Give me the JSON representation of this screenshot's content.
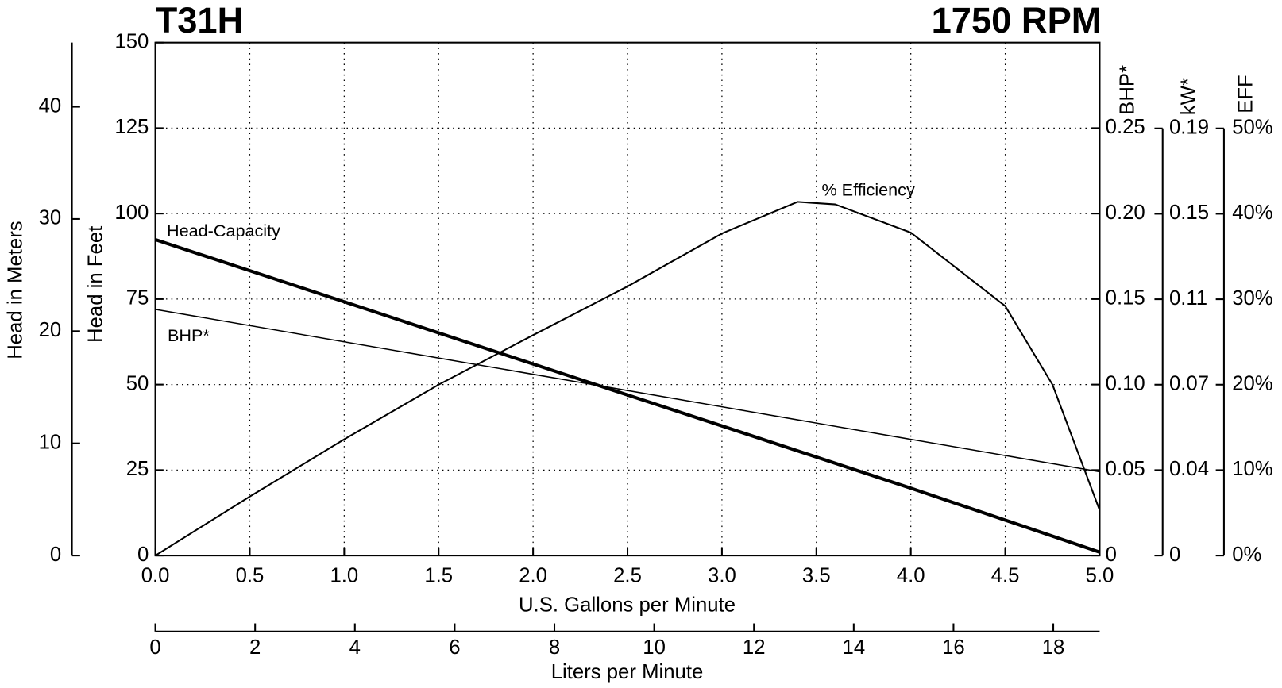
{
  "chart_data": {
    "type": "line",
    "title": "T31H",
    "subtitle": "1750 RPM",
    "xlabel": "U.S. Gallons per Minute",
    "xlim": [
      0,
      5
    ],
    "xticks": [
      {
        "value": 0,
        "label": "0.0"
      },
      {
        "value": 0.5,
        "label": "0.5"
      },
      {
        "value": 1,
        "label": "1.0"
      },
      {
        "value": 1.5,
        "label": "1.5"
      },
      {
        "value": 2,
        "label": "2.0"
      },
      {
        "value": 2.5,
        "label": "2.5"
      },
      {
        "value": 3,
        "label": "3.0"
      },
      {
        "value": 3.5,
        "label": "3.5"
      },
      {
        "value": 4,
        "label": "4.0"
      },
      {
        "value": 4.5,
        "label": "4.5"
      },
      {
        "value": 5,
        "label": "5.0"
      }
    ],
    "x2label": "Liters per Minute",
    "x2lim": [
      0,
      18.93
    ],
    "x2ticks": [
      0,
      2,
      4,
      6,
      8,
      10,
      12,
      14,
      16,
      18
    ],
    "ylabel": "Head in Feet",
    "ylim": [
      0,
      150
    ],
    "yticks": [
      0,
      25,
      50,
      75,
      100,
      125,
      150
    ],
    "ymlabel": "Head in Meters",
    "ymlim": [
      0,
      45.72
    ],
    "ymticks": [
      0,
      10,
      20,
      30,
      40
    ],
    "y2label": "BHP*",
    "y2lim": [
      0,
      0.3
    ],
    "y2ticks": [
      {
        "value": 0,
        "label": "0"
      },
      {
        "value": 0.05,
        "label": "0.05"
      },
      {
        "value": 0.1,
        "label": "0.10"
      },
      {
        "value": 0.15,
        "label": "0.15"
      },
      {
        "value": 0.2,
        "label": "0.20"
      },
      {
        "value": 0.25,
        "label": "0.25"
      }
    ],
    "y3label": "kW*",
    "y3lim": [
      0,
      0.1865
    ],
    "y3ticks": [
      {
        "value": 0,
        "label": "0"
      },
      {
        "value": 0.0373,
        "label": "0.04"
      },
      {
        "value": 0.0746,
        "label": "0.07"
      },
      {
        "value": 0.1119,
        "label": "0.11"
      },
      {
        "value": 0.1492,
        "label": "0.15"
      },
      {
        "value": 0.1865,
        "label": "0.19"
      }
    ],
    "y4label": "EFF",
    "y4lim": [
      0,
      50
    ],
    "y4ticks": [
      {
        "value": 0,
        "label": "0%"
      },
      {
        "value": 10,
        "label": "10%"
      },
      {
        "value": 20,
        "label": "20%"
      },
      {
        "value": 30,
        "label": "30%"
      },
      {
        "value": 40,
        "label": "40%"
      },
      {
        "value": 50,
        "label": "50%"
      }
    ],
    "grid": true,
    "series": [
      {
        "name": "Head-Capacity",
        "color": "#000000",
        "axis": "y",
        "x": [
          0,
          1,
          2,
          3,
          4,
          5
        ],
        "values": [
          92.4,
          74.2,
          56,
          37.9,
          19.7,
          1
        ]
      },
      {
        "name": "BHP*",
        "color": "#000000",
        "axis": "y2",
        "x": [
          0,
          1,
          2,
          3,
          4,
          5
        ],
        "values": [
          0.144,
          0.125,
          0.106,
          0.087,
          0.068,
          0.049
        ]
      },
      {
        "name": "% Efficiency",
        "color": "#000000",
        "axis": "y4",
        "x": [
          0,
          0.5,
          1,
          1.5,
          2,
          2.5,
          3,
          3.4,
          3.6,
          4,
          4.5,
          4.75,
          5
        ],
        "values": [
          0,
          6.9,
          13.6,
          20,
          25.8,
          31.5,
          37.7,
          41.4,
          41.1,
          37.8,
          29.2,
          20,
          5.3
        ]
      }
    ]
  }
}
